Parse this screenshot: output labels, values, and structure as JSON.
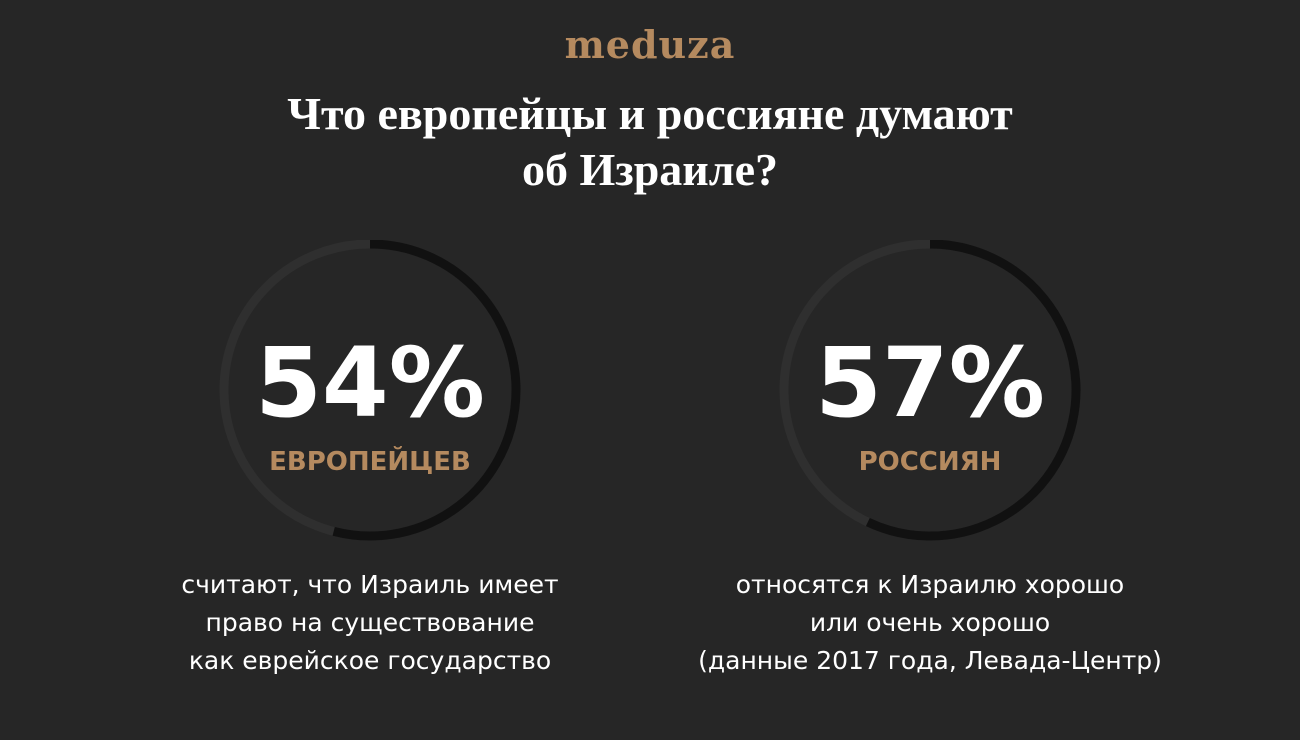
{
  "brand": "meduza",
  "title_lines": [
    "Что европейцы и россияне думают",
    "об Израиле?"
  ],
  "colors": {
    "background": "#262626",
    "accent": "#b58a5f",
    "ring_track": "#2f2f2f",
    "ring_fill": "#111111",
    "text": "#ffffff"
  },
  "chart_data": [
    {
      "type": "pie",
      "value": 54,
      "max": 100,
      "label": "54%",
      "group": "ЕВРОПЕЙЦЕВ",
      "caption_lines": [
        "считают, что Израиль имеет",
        "право на существование",
        "как еврейское государство"
      ]
    },
    {
      "type": "pie",
      "value": 57,
      "max": 100,
      "label": "57%",
      "group": "РОССИЯН",
      "caption_lines": [
        "относятся к Израилю хорошо",
        "или очень хорошо",
        "(данные 2017 года, Левада-Центр)"
      ]
    }
  ]
}
